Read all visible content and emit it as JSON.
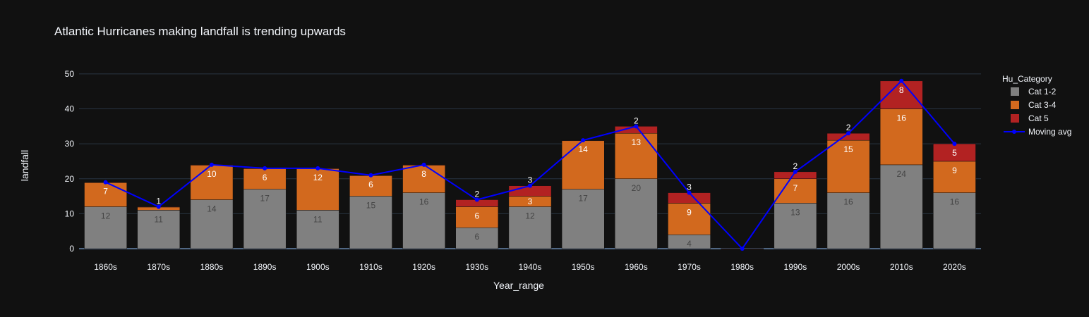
{
  "chart_data": {
    "type": "bar",
    "title": "Atlantic Hurricanes making landfall is trending upwards",
    "xlabel": "Year_range",
    "ylabel": "landfall",
    "ylim": [
      0,
      53
    ],
    "yticks": [
      0,
      10,
      20,
      30,
      40,
      50
    ],
    "grid": true,
    "legend_title": "Hu_Category",
    "legend_position": "right",
    "categories": [
      "1860s",
      "1870s",
      "1880s",
      "1890s",
      "1900s",
      "1910s",
      "1920s",
      "1930s",
      "1940s",
      "1950s",
      "1960s",
      "1970s",
      "1980s",
      "1990s",
      "2000s",
      "2010s",
      "2020s"
    ],
    "series": [
      {
        "name": "Cat 1-2",
        "color": "#808080",
        "label_color": "#444444",
        "values": [
          12,
          11,
          14,
          17,
          11,
          15,
          16,
          6,
          12,
          17,
          20,
          4,
          0,
          13,
          16,
          24,
          16
        ]
      },
      {
        "name": "Cat 3-4",
        "color": "#d2691e",
        "label_color": "#ffffff",
        "values": [
          7,
          1,
          10,
          6,
          12,
          6,
          8,
          6,
          3,
          14,
          13,
          9,
          0,
          7,
          15,
          16,
          9
        ]
      },
      {
        "name": "Cat 5",
        "color": "#b22222",
        "label_color": "#ffffff",
        "values": [
          0,
          0,
          0,
          0,
          0,
          0,
          0,
          2,
          3,
          0,
          2,
          3,
          0,
          2,
          2,
          8,
          5
        ]
      }
    ],
    "line_series": {
      "name": "Moving avg",
      "color": "#0000ff",
      "values": [
        19,
        12,
        24,
        23,
        23,
        21,
        24,
        14,
        18,
        31,
        35,
        16,
        0,
        22,
        33,
        48,
        30
      ]
    }
  }
}
